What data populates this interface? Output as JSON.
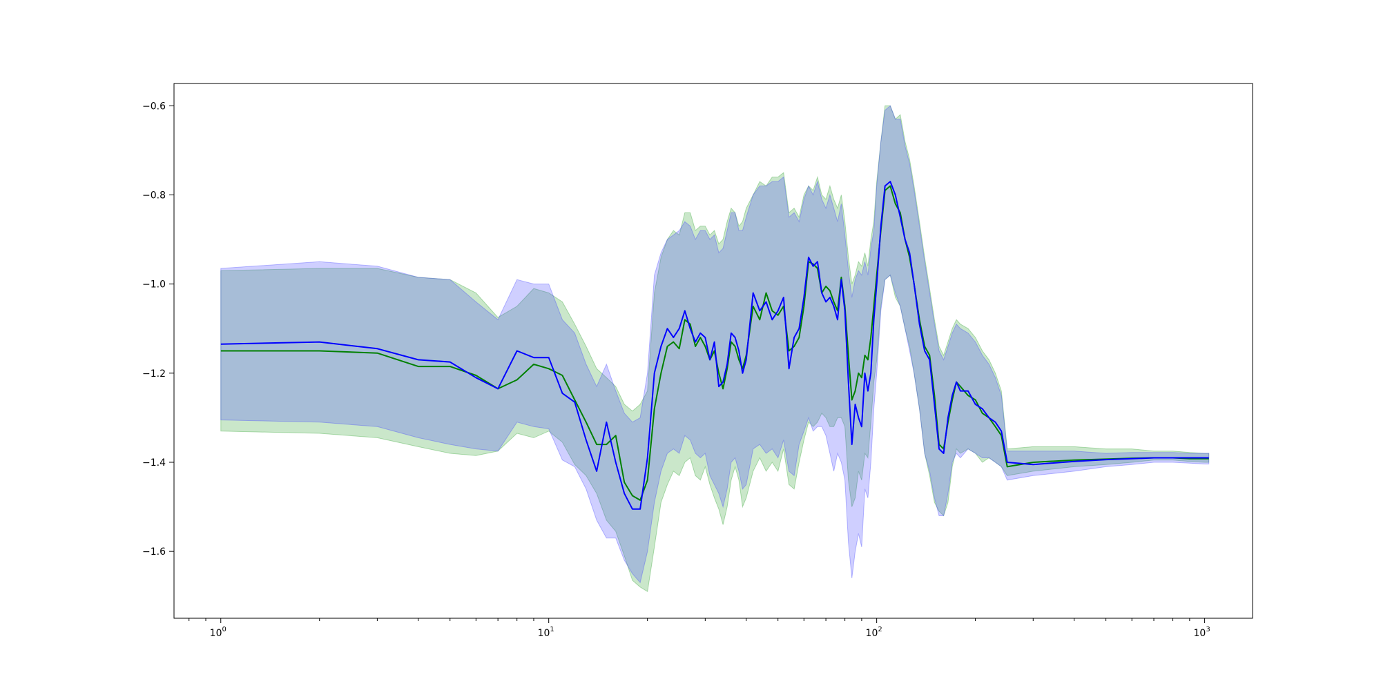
{
  "chart_data": {
    "type": "line",
    "title": "",
    "xlabel": "",
    "ylabel": "",
    "xscale": "log",
    "xlim": [
      0.72,
      1400
    ],
    "ylim": [
      -1.75,
      -0.55
    ],
    "grid": false,
    "legend": "none",
    "x_ticks": [
      {
        "value": 1,
        "base": "10",
        "exp": "0"
      },
      {
        "value": 10,
        "base": "10",
        "exp": "1"
      },
      {
        "value": 100,
        "base": "10",
        "exp": "2"
      },
      {
        "value": 1000,
        "base": "10",
        "exp": "3"
      }
    ],
    "y_ticks": [
      {
        "value": -0.6,
        "label": "−0.6"
      },
      {
        "value": -0.8,
        "label": "−0.8"
      },
      {
        "value": -1.0,
        "label": "−1.0"
      },
      {
        "value": -1.2,
        "label": "−1.2"
      },
      {
        "value": -1.4,
        "label": "−1.4"
      },
      {
        "value": -1.6,
        "label": "−1.6"
      }
    ],
    "series": [
      {
        "color": "#008000",
        "band_color": "#2ca02c",
        "x": [
          1,
          2,
          3,
          4,
          5,
          6,
          7,
          8,
          9,
          10,
          11,
          12,
          13,
          14,
          15,
          16,
          17,
          18,
          19,
          20,
          21,
          22,
          23,
          24,
          25,
          26,
          27,
          28,
          29,
          30,
          31,
          32,
          33,
          34,
          35,
          36,
          37,
          38,
          39,
          40,
          42,
          44,
          46,
          48,
          50,
          52,
          54,
          56,
          58,
          60,
          62,
          64,
          66,
          68,
          70,
          72,
          74,
          76,
          78,
          80,
          82,
          84,
          86,
          88,
          90,
          92,
          94,
          96,
          98,
          100,
          103,
          106,
          110,
          114,
          118,
          122,
          126,
          130,
          135,
          140,
          145,
          150,
          155,
          160,
          165,
          170,
          175,
          180,
          190,
          200,
          210,
          220,
          230,
          240,
          250,
          300,
          400,
          500,
          600,
          700,
          800,
          900,
          1000,
          1030
        ],
        "y": [
          -1.15,
          -1.15,
          -1.155,
          -1.185,
          -1.185,
          -1.205,
          -1.235,
          -1.215,
          -1.18,
          -1.19,
          -1.205,
          -1.26,
          -1.31,
          -1.36,
          -1.36,
          -1.34,
          -1.445,
          -1.475,
          -1.485,
          -1.44,
          -1.28,
          -1.2,
          -1.14,
          -1.13,
          -1.145,
          -1.08,
          -1.09,
          -1.14,
          -1.12,
          -1.14,
          -1.17,
          -1.15,
          -1.2,
          -1.235,
          -1.19,
          -1.13,
          -1.14,
          -1.17,
          -1.19,
          -1.16,
          -1.05,
          -1.08,
          -1.02,
          -1.06,
          -1.07,
          -1.05,
          -1.15,
          -1.14,
          -1.12,
          -1.05,
          -0.95,
          -0.955,
          -0.965,
          -1.02,
          -1.005,
          -1.015,
          -1.04,
          -1.06,
          -0.985,
          -1.05,
          -1.16,
          -1.26,
          -1.24,
          -1.2,
          -1.21,
          -1.16,
          -1.17,
          -1.12,
          -1.05,
          -0.98,
          -0.88,
          -0.79,
          -0.78,
          -0.82,
          -0.84,
          -0.9,
          -0.94,
          -1.0,
          -1.08,
          -1.14,
          -1.16,
          -1.25,
          -1.36,
          -1.37,
          -1.31,
          -1.26,
          -1.22,
          -1.23,
          -1.25,
          -1.26,
          -1.29,
          -1.3,
          -1.32,
          -1.34,
          -1.41,
          -1.4,
          -1.395,
          -1.393,
          -1.391,
          -1.39,
          -1.39,
          -1.392,
          -1.392,
          -1.392
        ],
        "y_low": [
          -1.33,
          -1.335,
          -1.345,
          -1.365,
          -1.38,
          -1.385,
          -1.375,
          -1.335,
          -1.345,
          -1.33,
          -1.355,
          -1.405,
          -1.43,
          -1.47,
          -1.53,
          -1.555,
          -1.61,
          -1.665,
          -1.68,
          -1.69,
          -1.59,
          -1.49,
          -1.45,
          -1.42,
          -1.43,
          -1.4,
          -1.39,
          -1.43,
          -1.44,
          -1.41,
          -1.45,
          -1.48,
          -1.505,
          -1.54,
          -1.5,
          -1.44,
          -1.41,
          -1.44,
          -1.5,
          -1.48,
          -1.42,
          -1.39,
          -1.42,
          -1.4,
          -1.42,
          -1.37,
          -1.45,
          -1.46,
          -1.4,
          -1.35,
          -1.31,
          -1.32,
          -1.31,
          -1.29,
          -1.3,
          -1.32,
          -1.32,
          -1.3,
          -1.3,
          -1.32,
          -1.44,
          -1.5,
          -1.48,
          -1.42,
          -1.44,
          -1.38,
          -1.39,
          -1.31,
          -1.22,
          -1.17,
          -1.05,
          -0.99,
          -0.98,
          -1.03,
          -1.05,
          -1.1,
          -1.14,
          -1.2,
          -1.28,
          -1.38,
          -1.43,
          -1.49,
          -1.51,
          -1.52,
          -1.49,
          -1.41,
          -1.37,
          -1.38,
          -1.37,
          -1.38,
          -1.4,
          -1.39,
          -1.4,
          -1.41,
          -1.43,
          -1.42,
          -1.41,
          -1.405,
          -1.4,
          -1.395,
          -1.395,
          -1.398,
          -1.4,
          -1.4
        ],
        "y_high": [
          -0.97,
          -0.965,
          -0.965,
          -0.985,
          -0.99,
          -1.02,
          -1.075,
          -1.05,
          -1.01,
          -1.02,
          -1.04,
          -1.09,
          -1.14,
          -1.19,
          -1.21,
          -1.23,
          -1.27,
          -1.285,
          -1.27,
          -1.24,
          -1.02,
          -0.94,
          -0.9,
          -0.88,
          -0.89,
          -0.84,
          -0.84,
          -0.88,
          -0.87,
          -0.87,
          -0.89,
          -0.88,
          -0.91,
          -0.9,
          -0.86,
          -0.83,
          -0.84,
          -0.87,
          -0.86,
          -0.83,
          -0.8,
          -0.77,
          -0.78,
          -0.76,
          -0.76,
          -0.75,
          -0.84,
          -0.83,
          -0.85,
          -0.8,
          -0.78,
          -0.79,
          -0.76,
          -0.8,
          -0.81,
          -0.78,
          -0.81,
          -0.83,
          -0.8,
          -0.86,
          -0.94,
          -1.0,
          -0.98,
          -0.95,
          -0.96,
          -0.93,
          -0.96,
          -0.9,
          -0.86,
          -0.77,
          -0.68,
          -0.6,
          -0.6,
          -0.63,
          -0.62,
          -0.68,
          -0.72,
          -0.78,
          -0.86,
          -0.94,
          -1.01,
          -1.08,
          -1.14,
          -1.16,
          -1.13,
          -1.1,
          -1.08,
          -1.09,
          -1.1,
          -1.12,
          -1.15,
          -1.17,
          -1.2,
          -1.24,
          -1.37,
          -1.365,
          -1.365,
          -1.37,
          -1.37,
          -1.375,
          -1.375,
          -1.378,
          -1.38,
          -1.38
        ]
      },
      {
        "color": "#0000ff",
        "band_color": "#4040ff",
        "x": [
          1,
          2,
          3,
          4,
          5,
          6,
          7,
          8,
          9,
          10,
          11,
          12,
          13,
          14,
          15,
          16,
          17,
          18,
          19,
          20,
          21,
          22,
          23,
          24,
          25,
          26,
          27,
          28,
          29,
          30,
          31,
          32,
          33,
          34,
          35,
          36,
          37,
          38,
          39,
          40,
          42,
          44,
          46,
          48,
          50,
          52,
          54,
          56,
          58,
          60,
          62,
          64,
          66,
          68,
          70,
          72,
          74,
          76,
          78,
          80,
          82,
          84,
          86,
          88,
          90,
          92,
          94,
          96,
          98,
          100,
          103,
          106,
          110,
          114,
          118,
          122,
          126,
          130,
          135,
          140,
          145,
          150,
          155,
          160,
          165,
          170,
          175,
          180,
          190,
          200,
          210,
          220,
          230,
          240,
          250,
          300,
          400,
          500,
          600,
          700,
          800,
          900,
          1000,
          1030
        ],
        "y": [
          -1.135,
          -1.13,
          -1.145,
          -1.17,
          -1.175,
          -1.21,
          -1.235,
          -1.15,
          -1.165,
          -1.165,
          -1.245,
          -1.265,
          -1.35,
          -1.42,
          -1.31,
          -1.4,
          -1.47,
          -1.505,
          -1.505,
          -1.39,
          -1.2,
          -1.14,
          -1.1,
          -1.12,
          -1.1,
          -1.06,
          -1.1,
          -1.13,
          -1.11,
          -1.12,
          -1.17,
          -1.13,
          -1.23,
          -1.22,
          -1.18,
          -1.11,
          -1.12,
          -1.15,
          -1.2,
          -1.17,
          -1.02,
          -1.06,
          -1.04,
          -1.08,
          -1.06,
          -1.03,
          -1.19,
          -1.12,
          -1.1,
          -1.03,
          -0.94,
          -0.96,
          -0.95,
          -1.02,
          -1.04,
          -1.03,
          -1.05,
          -1.08,
          -0.99,
          -1.06,
          -1.22,
          -1.36,
          -1.27,
          -1.3,
          -1.32,
          -1.2,
          -1.24,
          -1.2,
          -1.08,
          -1.0,
          -0.87,
          -0.78,
          -0.77,
          -0.8,
          -0.85,
          -0.9,
          -0.93,
          -1.0,
          -1.09,
          -1.15,
          -1.17,
          -1.27,
          -1.37,
          -1.38,
          -1.3,
          -1.25,
          -1.22,
          -1.24,
          -1.24,
          -1.27,
          -1.28,
          -1.3,
          -1.31,
          -1.33,
          -1.4,
          -1.405,
          -1.398,
          -1.394,
          -1.392,
          -1.39,
          -1.39,
          -1.39,
          -1.39,
          -1.39
        ],
        "y_low": [
          -1.305,
          -1.31,
          -1.32,
          -1.345,
          -1.36,
          -1.37,
          -1.375,
          -1.31,
          -1.32,
          -1.325,
          -1.395,
          -1.41,
          -1.46,
          -1.53,
          -1.57,
          -1.57,
          -1.62,
          -1.65,
          -1.67,
          -1.6,
          -1.49,
          -1.42,
          -1.38,
          -1.37,
          -1.38,
          -1.34,
          -1.35,
          -1.38,
          -1.39,
          -1.38,
          -1.43,
          -1.45,
          -1.47,
          -1.5,
          -1.46,
          -1.4,
          -1.39,
          -1.42,
          -1.46,
          -1.45,
          -1.37,
          -1.36,
          -1.38,
          -1.37,
          -1.39,
          -1.35,
          -1.42,
          -1.43,
          -1.36,
          -1.33,
          -1.3,
          -1.33,
          -1.32,
          -1.32,
          -1.34,
          -1.38,
          -1.42,
          -1.38,
          -1.4,
          -1.44,
          -1.58,
          -1.66,
          -1.6,
          -1.56,
          -1.59,
          -1.46,
          -1.48,
          -1.4,
          -1.28,
          -1.2,
          -1.06,
          -0.99,
          -0.98,
          -1.02,
          -1.05,
          -1.1,
          -1.15,
          -1.2,
          -1.28,
          -1.38,
          -1.42,
          -1.48,
          -1.52,
          -1.52,
          -1.47,
          -1.4,
          -1.38,
          -1.39,
          -1.37,
          -1.38,
          -1.39,
          -1.39,
          -1.4,
          -1.41,
          -1.44,
          -1.43,
          -1.42,
          -1.41,
          -1.405,
          -1.4,
          -1.4,
          -1.402,
          -1.404,
          -1.404
        ],
        "y_high": [
          -0.965,
          -0.95,
          -0.96,
          -0.985,
          -0.99,
          -1.04,
          -1.08,
          -0.99,
          -1.0,
          -1.0,
          -1.08,
          -1.11,
          -1.18,
          -1.23,
          -1.18,
          -1.24,
          -1.29,
          -1.31,
          -1.3,
          -1.2,
          -0.98,
          -0.93,
          -0.9,
          -0.89,
          -0.88,
          -0.86,
          -0.87,
          -0.9,
          -0.88,
          -0.88,
          -0.9,
          -0.89,
          -0.93,
          -0.92,
          -0.88,
          -0.84,
          -0.84,
          -0.88,
          -0.88,
          -0.85,
          -0.8,
          -0.78,
          -0.78,
          -0.77,
          -0.77,
          -0.76,
          -0.85,
          -0.84,
          -0.86,
          -0.81,
          -0.78,
          -0.8,
          -0.77,
          -0.81,
          -0.83,
          -0.8,
          -0.83,
          -0.86,
          -0.82,
          -0.89,
          -0.97,
          -1.03,
          -0.99,
          -0.97,
          -0.98,
          -0.95,
          -0.98,
          -0.92,
          -0.88,
          -0.78,
          -0.68,
          -0.61,
          -0.6,
          -0.63,
          -0.63,
          -0.69,
          -0.73,
          -0.79,
          -0.87,
          -0.95,
          -1.02,
          -1.09,
          -1.15,
          -1.17,
          -1.14,
          -1.11,
          -1.09,
          -1.1,
          -1.11,
          -1.13,
          -1.16,
          -1.18,
          -1.21,
          -1.25,
          -1.375,
          -1.375,
          -1.375,
          -1.38,
          -1.378,
          -1.378,
          -1.378,
          -1.38,
          -1.38,
          -1.38
        ]
      }
    ]
  }
}
